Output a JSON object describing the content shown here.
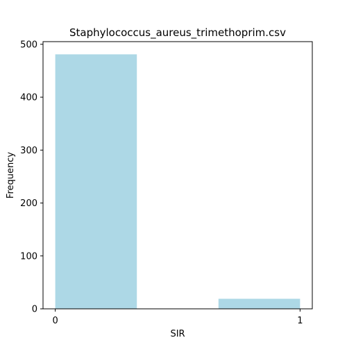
{
  "chart_data": {
    "type": "bar",
    "title": "Staphylococcus_aureus_trimethoprim.csv",
    "xlabel": "SIR",
    "ylabel": "Frequency",
    "bars": [
      {
        "x_start": 0.0,
        "x_end": 0.3333,
        "value": 481
      },
      {
        "x_start": 0.6667,
        "x_end": 1.0,
        "value": 19
      }
    ],
    "xlim": [
      -0.05,
      1.05
    ],
    "ylim": [
      0,
      505
    ],
    "x_ticks": [
      0,
      1
    ],
    "y_ticks": [
      0,
      100,
      200,
      300,
      400,
      500
    ],
    "bar_color": "#add8e6",
    "grid": false,
    "legend": "none"
  }
}
